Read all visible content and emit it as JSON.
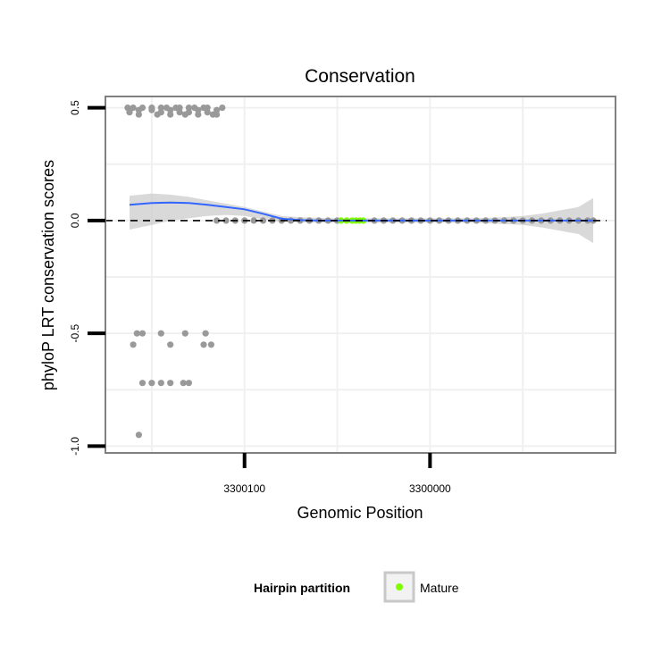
{
  "chart_data": {
    "type": "scatter",
    "title": "Conservation",
    "xlabel": "Genomic Position",
    "ylabel": "phyloP LRT conservation scores",
    "x_reversed": true,
    "xlim": [
      3300175,
      3299900
    ],
    "ylim": [
      -1.03,
      0.55
    ],
    "x_ticks": [
      {
        "value": 3300100,
        "label": "3300100"
      },
      {
        "value": 3300000,
        "label": "3300000"
      }
    ],
    "y_ticks": [
      {
        "value": 0.5,
        "label": "0.5"
      },
      {
        "value": 0.0,
        "label": "0.0"
      },
      {
        "value": -0.5,
        "label": "-0.5"
      },
      {
        "value": -1.0,
        "label": "-1.0"
      }
    ],
    "x_grid": [
      3300150,
      3300100,
      3300050,
      3300000,
      3299950
    ],
    "y_grid": [
      0.5,
      0.25,
      0.0,
      -0.25,
      -0.5,
      -0.75,
      -1.0
    ],
    "grid": true,
    "reference_line": {
      "y": 0,
      "style": "dashed",
      "color": "#000000"
    },
    "smooth": {
      "color": "#3366ff",
      "band_color": "#cccccc",
      "x": [
        3300162,
        3300150,
        3300140,
        3300130,
        3300120,
        3300110,
        3300100,
        3300090,
        3300080,
        3300070,
        3300060,
        3300050,
        3300040,
        3300030,
        3300020,
        3300010,
        3300000,
        3299990,
        3299980,
        3299970,
        3299960,
        3299950,
        3299940,
        3299930,
        3299920,
        3299912
      ],
      "y": [
        0.07,
        0.078,
        0.08,
        0.078,
        0.07,
        0.06,
        0.05,
        0.03,
        0.008,
        0.002,
        0.0,
        0.0,
        0.0,
        0.0,
        0.0,
        0.0,
        0.0,
        0.0,
        0.0,
        0.0,
        0.0,
        0.0,
        0.0,
        0.0,
        0.0,
        0.0
      ],
      "upper": [
        0.11,
        0.12,
        0.115,
        0.105,
        0.09,
        0.075,
        0.06,
        0.04,
        0.02,
        0.015,
        0.012,
        0.01,
        0.01,
        0.01,
        0.01,
        0.01,
        0.01,
        0.01,
        0.01,
        0.012,
        0.015,
        0.02,
        0.03,
        0.045,
        0.06,
        0.1
      ],
      "lower": [
        -0.04,
        -0.02,
        0.0,
        0.01,
        0.02,
        0.025,
        0.02,
        0.005,
        -0.005,
        -0.008,
        -0.01,
        -0.01,
        -0.01,
        -0.01,
        -0.01,
        -0.01,
        -0.01,
        -0.01,
        -0.01,
        -0.012,
        -0.015,
        -0.02,
        -0.03,
        -0.045,
        -0.06,
        -0.1
      ]
    },
    "series": [
      {
        "name": "Mature",
        "color": "#7fff00",
        "x": [
          3300048,
          3300045,
          3300042,
          3300040,
          3300038,
          3300036
        ],
        "y": [
          0.0,
          0.0,
          0.0,
          0.0,
          0.0,
          0.0
        ]
      },
      {
        "color": "#999999",
        "x": [
          3300163,
          3300160,
          3300157,
          3300155,
          3300150,
          3300147,
          3300145,
          3300142,
          3300140,
          3300137,
          3300135,
          3300132,
          3300130,
          3300127,
          3300125,
          3300122,
          3300120,
          3300117,
          3300115,
          3300112,
          3300162,
          3300157,
          3300150,
          3300145,
          3300140,
          3300135,
          3300130,
          3300125,
          3300120,
          3300115,
          3300158,
          3300155,
          3300145,
          3300132,
          3300121,
          3300160,
          3300155,
          3300140,
          3300133,
          3300122,
          3300118,
          3300150,
          3300145,
          3300140,
          3300130,
          3300157,
          3300115,
          3300110,
          3300105,
          3300100,
          3300095,
          3300090,
          3300085,
          3300080,
          3300075,
          3300070,
          3300065,
          3300060,
          3300055,
          3300050,
          3300030,
          3300025,
          3300020,
          3300015,
          3300010,
          3300005,
          3300000,
          3299995,
          3299990,
          3299985,
          3299980,
          3299975,
          3299970,
          3299965,
          3299960,
          3299955,
          3299950,
          3299945,
          3299940,
          3299935,
          3299930,
          3299925,
          3299920,
          3299915,
          3299912
        ],
        "y": [
          0.5,
          0.5,
          0.47,
          0.5,
          0.5,
          0.47,
          0.5,
          0.5,
          0.47,
          0.5,
          0.5,
          0.47,
          0.5,
          0.5,
          0.47,
          0.5,
          0.5,
          0.47,
          0.47,
          0.5,
          0.48,
          0.49,
          0.49,
          0.48,
          0.49,
          0.48,
          0.48,
          0.49,
          0.48,
          0.49,
          -0.5,
          -0.5,
          -0.5,
          -0.5,
          -0.5,
          -0.55,
          -0.72,
          -0.55,
          -0.72,
          -0.55,
          -0.55,
          -0.72,
          -0.72,
          -0.72,
          -0.72,
          -0.95,
          0.0,
          0.0,
          0.0,
          0.0,
          0.0,
          0.0,
          0.0,
          0.0,
          0.0,
          0.0,
          0.0,
          0.0,
          0.0,
          0.0,
          0.0,
          0.0,
          0.0,
          0.0,
          0.0,
          0.0,
          0.0,
          0.0,
          0.0,
          0.0,
          0.0,
          0.0,
          0.0,
          0.0,
          0.0,
          0.0,
          0.0,
          0.0,
          0.0,
          0.0,
          0.0,
          0.0,
          0.0,
          0.0,
          0.0
        ]
      }
    ],
    "legend": {
      "position": "bottom",
      "title": "Hairpin partition",
      "entries": [
        {
          "label": "Mature",
          "color": "#7fff00"
        }
      ]
    }
  }
}
